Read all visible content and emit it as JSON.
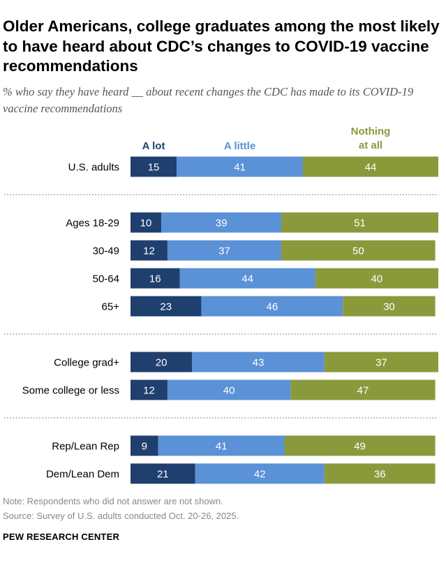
{
  "title": "Older Americans, college graduates among the most likely to have heard about CDC’s changes to COVID-19 vaccine recommendations",
  "subtitle": "% who say they have heard __ about recent changes the CDC has made to its COVID-19 vaccine recommendations",
  "note": "Note: Respondents who did not answer are not shown.",
  "source": "Source: Survey of U.S. adults conducted Oct. 20-26, 2025.",
  "brand": "PEW RESEARCH CENTER",
  "colors": {
    "a_lot": "#1f3f6e",
    "a_little": "#5b91d6",
    "nothing": "#8a9a3b",
    "separator": "#9a9a9a"
  },
  "chart_data": {
    "type": "bar",
    "orientation": "horizontal",
    "stacked": true,
    "categories": [
      "U.S. adults",
      "Ages 18-29",
      "30-49",
      "50-64",
      "65+",
      "College grad+",
      "Some college or less",
      "Rep/Lean Rep",
      "Dem/Lean Dem"
    ],
    "groups": [
      [
        0
      ],
      [
        1,
        2,
        3,
        4
      ],
      [
        5,
        6
      ],
      [
        7,
        8
      ]
    ],
    "series": [
      {
        "name": "A lot",
        "legend": [
          "A lot"
        ],
        "values": [
          15,
          10,
          12,
          16,
          23,
          20,
          12,
          9,
          21
        ]
      },
      {
        "name": "A little",
        "legend": [
          "A little"
        ],
        "values": [
          41,
          39,
          37,
          44,
          46,
          43,
          40,
          41,
          42
        ]
      },
      {
        "name": "Nothing at all",
        "legend": [
          "Nothing",
          "at all"
        ],
        "values": [
          44,
          51,
          50,
          40,
          30,
          37,
          47,
          49,
          36
        ]
      }
    ],
    "xlim": [
      0,
      100
    ],
    "legend_placement": "top"
  }
}
